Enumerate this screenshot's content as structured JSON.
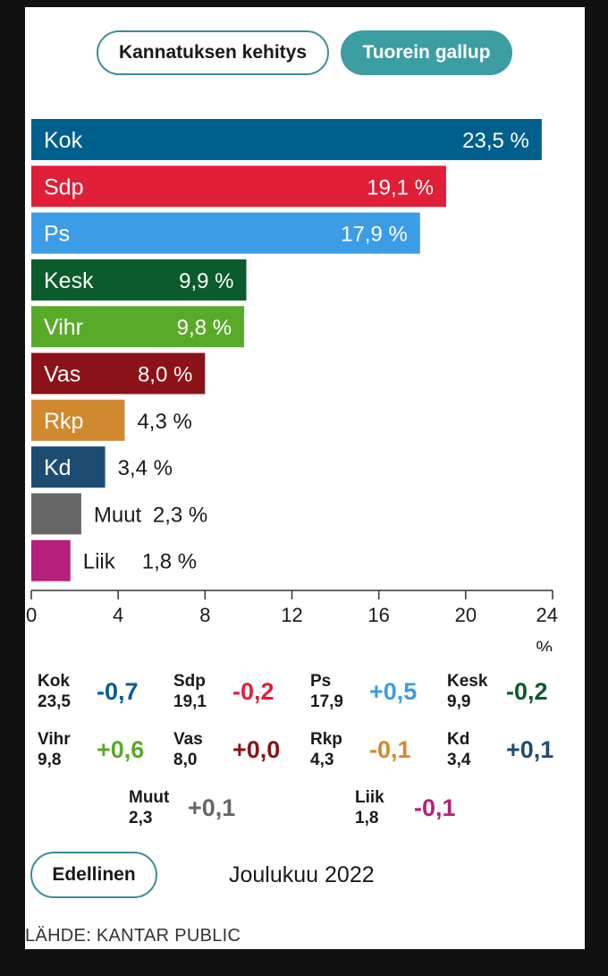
{
  "tabs": {
    "trend_label": "Kannatuksen kehitys",
    "latest_label": "Tuorein gallup"
  },
  "chart_data": {
    "type": "bar",
    "orientation": "horizontal",
    "categories": [
      "Kok",
      "Sdp",
      "Ps",
      "Kesk",
      "Vihr",
      "Vas",
      "Rkp",
      "Kd",
      "Muut",
      "Liik"
    ],
    "values": [
      23.5,
      19.1,
      17.9,
      9.9,
      9.8,
      8.0,
      4.3,
      3.4,
      2.3,
      1.8
    ],
    "value_labels": [
      "23,5 %",
      "19,1 %",
      "17,9 %",
      "9,9 %",
      "9,8 %",
      "8,0 %",
      "4,3 %",
      "3,4 %",
      "2,3 %",
      "1,8 %"
    ],
    "colors": [
      "#00608d",
      "#e01e37",
      "#3c9ce6",
      "#0b5b2d",
      "#5aaa2a",
      "#8b1218",
      "#d1892f",
      "#1d4c73",
      "#666666",
      "#b5217a"
    ],
    "xlim": [
      0,
      24
    ],
    "xticks": [
      0,
      4,
      8,
      12,
      16,
      20,
      24
    ],
    "xlabel": "%",
    "grid": false
  },
  "changes": [
    {
      "party": "Kok",
      "value": "23,5",
      "delta": "-0,7",
      "color": "#00608d"
    },
    {
      "party": "Sdp",
      "value": "19,1",
      "delta": "-0,2",
      "color": "#e01e37"
    },
    {
      "party": "Ps",
      "value": "17,9",
      "delta": "+0,5",
      "color": "#3c9ce6"
    },
    {
      "party": "Kesk",
      "value": "9,9",
      "delta": "-0,2",
      "color": "#0b5b2d"
    },
    {
      "party": "Vihr",
      "value": "9,8",
      "delta": "+0,6",
      "color": "#5aaa2a"
    },
    {
      "party": "Vas",
      "value": "8,0",
      "delta": "+0,0",
      "color": "#8b1218"
    },
    {
      "party": "Rkp",
      "value": "4,3",
      "delta": "-0,1",
      "color": "#d1892f"
    },
    {
      "party": "Kd",
      "value": "3,4",
      "delta": "+0,1",
      "color": "#1d4c73"
    },
    {
      "party": "Muut",
      "value": "2,3",
      "delta": "+0,1",
      "color": "#666666"
    },
    {
      "party": "Liik",
      "value": "1,8",
      "delta": "-0,1",
      "color": "#b5217a"
    }
  ],
  "footer": {
    "prev_label": "Edellinen",
    "period": "Joulukuu 2022",
    "source": "LÄHDE: KANTAR PUBLIC"
  }
}
